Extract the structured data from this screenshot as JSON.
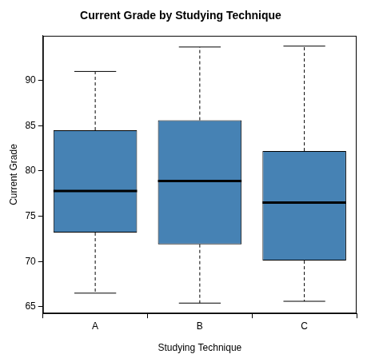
{
  "chart_data": {
    "type": "boxplot",
    "title": "Current Grade by Studying Technique",
    "x_label": "Studying Technique",
    "y_label": "Current Grade",
    "categories": [
      "A",
      "B",
      "C"
    ],
    "min": [
      66.5,
      65.4,
      65.6
    ],
    "q1": [
      73.2,
      71.9,
      70.1
    ],
    "median": [
      77.8,
      78.9,
      76.5
    ],
    "q3": [
      84.5,
      85.6,
      82.2
    ],
    "max": [
      91.0,
      93.7,
      93.8
    ],
    "color": "#4682b4",
    "ylim": [
      64.26,
      94.94
    ],
    "yticks": [
      65,
      70,
      75,
      80,
      85,
      90
    ],
    "grid": false
  }
}
